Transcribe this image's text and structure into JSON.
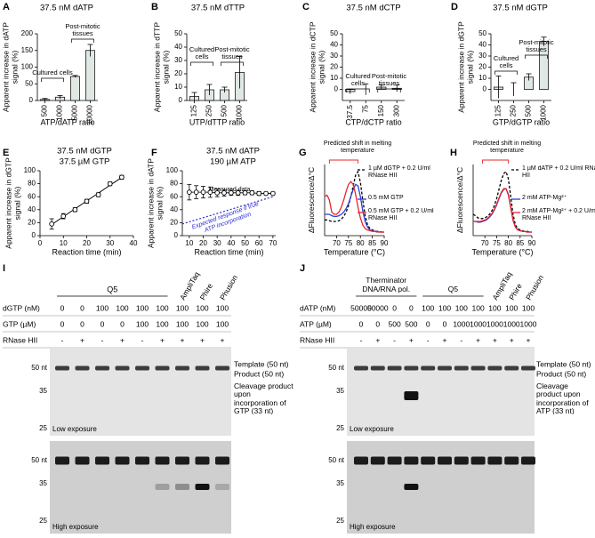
{
  "chart_data": [
    {
      "panel": "A",
      "type": "bar",
      "title": "37.5 nM dATP",
      "ylabel": "Apparent increase in dATP signal (%)",
      "xlabel": "ATP/dATP ratio",
      "categories": [
        "500",
        "1000",
        "5000",
        "10000"
      ],
      "values": [
        3,
        10,
        72,
        150
      ],
      "errors": [
        3,
        5,
        3,
        18
      ],
      "color": "#dfe8e2",
      "ylim": [
        0,
        200
      ],
      "yticks": [
        0,
        50,
        100,
        150,
        200
      ],
      "annotations": [
        "Cultured cells",
        "Post-mitotic tissues"
      ]
    },
    {
      "panel": "B",
      "type": "bar",
      "title": "37.5 nM dTTP",
      "ylabel": "Apparent increase in dTTP signal (%)",
      "xlabel": "UTP/dTTP ratio",
      "categories": [
        "125",
        "250",
        "500",
        "1000"
      ],
      "values": [
        3,
        8,
        8,
        21
      ],
      "errors": [
        3,
        4,
        2,
        12
      ],
      "color": "#dfe8e2",
      "ylim": [
        0,
        50
      ],
      "yticks": [
        0,
        10,
        20,
        30,
        40,
        50
      ],
      "annotations": [
        "Cultured cells",
        "Post-mitotic tissues"
      ]
    },
    {
      "panel": "C",
      "type": "bar",
      "title": "37.5 nM dCTP",
      "ylabel": "Apparent increase in dCTP signal (%)",
      "xlabel": "CTP/dCTP ratio",
      "categories": [
        "37.5",
        "75",
        "150",
        "300"
      ],
      "values": [
        -2,
        0,
        2,
        1
      ],
      "errors": [
        2,
        5,
        2,
        3
      ],
      "color": "#dfe8e2",
      "ylim": [
        -10,
        50
      ],
      "yticks": [
        0,
        10,
        20,
        30,
        40,
        50
      ],
      "annotations": [
        "Cultured cells",
        "Post-mitotic tissues"
      ]
    },
    {
      "panel": "D",
      "type": "bar",
      "title": "37.5 nM dGTP",
      "ylabel": "Apparent increase in dGTP signal (%)",
      "xlabel": "GTP/dGTP ratio",
      "categories": [
        "125",
        "250",
        "500",
        "1000"
      ],
      "values": [
        2,
        0,
        11,
        43
      ],
      "errors": [
        10,
        6,
        3,
        4
      ],
      "color": "#dfe8e2",
      "ylim": [
        -10,
        50
      ],
      "yticks": [
        0,
        10,
        20,
        30,
        40,
        50
      ],
      "annotations": [
        "Cultured cells",
        "Post-mitotic tissues"
      ]
    },
    {
      "panel": "E",
      "type": "scatter",
      "title": "37.5 nM dGTP",
      "subtitle": "37.5 µM GTP",
      "ylabel": "Apparent increase in dGTP signal (%)",
      "xlabel": "Reaction time (min)",
      "x": [
        5,
        10,
        15,
        20,
        25,
        30,
        35
      ],
      "values": [
        18,
        30,
        40,
        53,
        63,
        80,
        90
      ],
      "errors": [
        8,
        4,
        3,
        3,
        3,
        3,
        3
      ],
      "color": "#000000",
      "fit_line": true,
      "xlim": [
        0,
        40
      ],
      "xticks": [
        0,
        10,
        20,
        30,
        40
      ],
      "ylim": [
        0,
        100
      ],
      "yticks": [
        0,
        20,
        40,
        60,
        80,
        100
      ]
    },
    {
      "panel": "F",
      "type": "scatter",
      "title": "37.5 nM dATP",
      "subtitle": "190 µM  ATP",
      "ylabel": "Apparent increase in dATP signal (%)",
      "xlabel": "Reaction time (min)",
      "x": [
        10,
        15,
        20,
        25,
        30,
        35,
        40,
        45,
        50,
        55,
        60,
        65,
        70
      ],
      "values": [
        67,
        67,
        67,
        67,
        66,
        66,
        66,
        66,
        66,
        66,
        65,
        65,
        65
      ],
      "errors": [
        12,
        10,
        9,
        8,
        6,
        5,
        4,
        4,
        3,
        3,
        3,
        2,
        2
      ],
      "color": "#000000",
      "connect": true,
      "expected": {
        "x": [
          5,
          70
        ],
        "values": [
          18,
          60
        ],
        "color": "#2b2bd6"
      },
      "xlim": [
        5,
        72
      ],
      "xticks": [
        10,
        20,
        30,
        40,
        50,
        60,
        70
      ],
      "ylim": [
        0,
        100
      ],
      "yticks": [
        0,
        20,
        40,
        60,
        80,
        100
      ],
      "annotations": [
        "Measured data",
        "Expected response if true ATP incorporation"
      ]
    },
    {
      "panel": "G",
      "type": "line",
      "ylabel": "ΔFluorescence/Δ°C",
      "xlabel": "Temperature (°C)",
      "x": [
        65,
        66,
        67,
        68,
        69,
        70,
        71,
        72,
        73,
        74,
        75,
        76,
        77,
        78,
        79,
        80,
        81,
        82,
        83,
        84,
        85,
        86,
        87,
        88,
        89,
        90
      ],
      "series": [
        {
          "name": "1 µM dGTP + 0.2 U/ml RNase HII",
          "color": "#000000",
          "dashed": true,
          "values": [
            0.22,
            0.22,
            0.21,
            0.2,
            0.2,
            0.2,
            0.21,
            0.23,
            0.27,
            0.33,
            0.42,
            0.55,
            0.7,
            0.85,
            0.9,
            0.75,
            0.5,
            0.28,
            0.15,
            0.1,
            0.08,
            0.07,
            0.06,
            0.06,
            0.05,
            0.05
          ]
        },
        {
          "name": "0.5 mM GTP",
          "color": "#2a3fd8",
          "dashed": false,
          "values": [
            0.3,
            0.3,
            0.3,
            0.28,
            0.27,
            0.27,
            0.28,
            0.3,
            0.33,
            0.38,
            0.45,
            0.55,
            0.65,
            0.72,
            0.7,
            0.55,
            0.35,
            0.2,
            0.12,
            0.08,
            0.07,
            0.06,
            0.06,
            0.05,
            0.05,
            0.05
          ]
        },
        {
          "name": "0.5 mM GTP + 0.2 U/ml RNase HII",
          "color": "#e8262a",
          "dashed": false,
          "values": [
            0.55,
            0.57,
            0.5,
            0.33,
            0.3,
            0.3,
            0.33,
            0.4,
            0.5,
            0.62,
            0.72,
            0.76,
            0.72,
            0.58,
            0.4,
            0.25,
            0.15,
            0.1,
            0.08,
            0.07,
            0.06,
            0.06,
            0.05,
            0.05,
            0.05,
            0.05
          ]
        }
      ],
      "xlim": [
        65,
        90
      ],
      "xticks": [
        70,
        75,
        80,
        85,
        90
      ],
      "ylim": [
        0,
        1
      ],
      "annotations": [
        "Predicted shift in melting temperature"
      ]
    },
    {
      "panel": "H",
      "type": "line",
      "ylabel": "ΔFluorescence/Δ°C",
      "xlabel": "Temperature (°C)",
      "x": [
        65,
        66,
        67,
        68,
        69,
        70,
        71,
        72,
        73,
        74,
        75,
        76,
        77,
        78,
        79,
        80,
        81,
        82,
        83,
        84,
        85,
        86,
        87,
        88,
        89,
        90
      ],
      "series": [
        {
          "name": "1 µM dATP + 0.2 U/ml RNase HII",
          "color": "#000000",
          "dashed": true,
          "values": [
            0.3,
            0.28,
            0.25,
            0.24,
            0.24,
            0.25,
            0.27,
            0.3,
            0.35,
            0.42,
            0.52,
            0.65,
            0.78,
            0.87,
            0.9,
            0.8,
            0.55,
            0.3,
            0.15,
            0.1,
            0.08,
            0.07,
            0.06,
            0.06,
            0.05,
            0.05
          ]
        },
        {
          "name": "2 mM ATP-Mg²⁺",
          "color": "#2a3fd8",
          "dashed": false,
          "values": [
            0.2,
            0.2,
            0.19,
            0.19,
            0.2,
            0.21,
            0.23,
            0.26,
            0.3,
            0.36,
            0.43,
            0.52,
            0.6,
            0.65,
            0.66,
            0.58,
            0.4,
            0.22,
            0.12,
            0.08,
            0.07,
            0.06,
            0.06,
            0.05,
            0.05,
            0.05
          ]
        },
        {
          "name": "2 mM ATP-Mg²⁺ + 0.2 U/ml RNase HII",
          "color": "#e8262a",
          "dashed": false,
          "values": [
            0.2,
            0.2,
            0.2,
            0.2,
            0.21,
            0.22,
            0.24,
            0.27,
            0.31,
            0.37,
            0.44,
            0.53,
            0.61,
            0.66,
            0.66,
            0.57,
            0.39,
            0.21,
            0.12,
            0.08,
            0.07,
            0.06,
            0.06,
            0.05,
            0.05,
            0.05
          ]
        }
      ],
      "xlim": [
        65,
        90
      ],
      "xticks": [
        70,
        75,
        80,
        85,
        90
      ],
      "ylim": [
        0,
        1
      ],
      "annotations": [
        "Predicted shift in melting temperature"
      ]
    }
  ],
  "gels": [
    {
      "panel": "I",
      "groups": [
        "Q5",
        "AmpliTaq",
        "Phire",
        "Phusion"
      ],
      "rows": [
        {
          "label": "dGTP (nM)",
          "values": [
            0,
            0,
            100,
            100,
            100,
            100,
            100,
            100,
            100
          ]
        },
        {
          "label": "GTP (µM)",
          "values": [
            0,
            0,
            0,
            0,
            100,
            100,
            100,
            100,
            100
          ]
        },
        {
          "label": "RNase HII",
          "values": [
            "-",
            "+",
            "-",
            "+",
            "-",
            "+",
            "+",
            "+",
            "+"
          ]
        }
      ],
      "markers": [
        "50 nt",
        "35",
        "25",
        "50 nt",
        "35",
        "25"
      ],
      "side_labels": [
        "Template (50 nt)",
        "Product (50 nt)",
        "Cleavage product upon incorporation of GTP (33 nt)"
      ],
      "exposures": [
        "Low exposure",
        "High exposure"
      ]
    },
    {
      "panel": "J",
      "groups": [
        "Therminator DNA/RNA pol.",
        "Q5",
        "AmpliTaq",
        "Phire",
        "Phusion"
      ],
      "rows": [
        {
          "label": "dATP (nM)",
          "values": [
            50000,
            50000,
            0,
            0,
            100,
            100,
            100,
            100,
            100,
            100,
            100
          ]
        },
        {
          "label": "ATP (µM)",
          "values": [
            0,
            0,
            500,
            500,
            0,
            0,
            1000,
            1000,
            1000,
            1000,
            1000
          ]
        },
        {
          "label": "RNase HII",
          "values": [
            "-",
            "+",
            "-",
            "+",
            "-",
            "+",
            "-",
            "+",
            "+",
            "+",
            "+"
          ]
        }
      ],
      "markers": [
        "50 nt",
        "35",
        "25",
        "50 nt",
        "35",
        "25"
      ],
      "side_labels": [
        "Template (50 nt)",
        "Product (50 nt)",
        "Cleavage product upon incorporation of ATP (33 nt)"
      ],
      "exposures": [
        "Low exposure",
        "High exposure"
      ]
    }
  ]
}
